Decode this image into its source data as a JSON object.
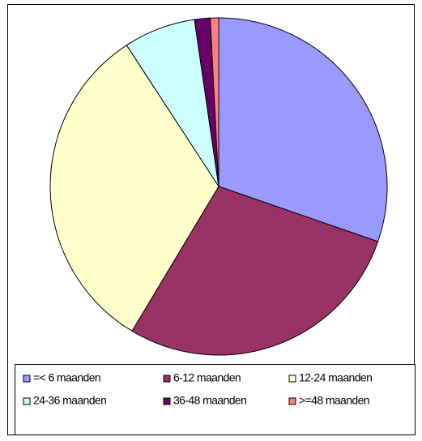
{
  "chart_data": {
    "type": "pie",
    "categories": [
      "=< 6 maanden",
      "6-12 maanden",
      "12-24 maanden",
      "24-36 maanden",
      "36-48 maanden",
      ">=48 maanden"
    ],
    "values": [
      30.3,
      28.3,
      32.2,
      6.9,
      1.5,
      0.8
    ],
    "colors": [
      "#9999ff",
      "#993366",
      "#ffffcc",
      "#ccffff",
      "#660066",
      "#ff8080"
    ],
    "legend": "bottom"
  }
}
